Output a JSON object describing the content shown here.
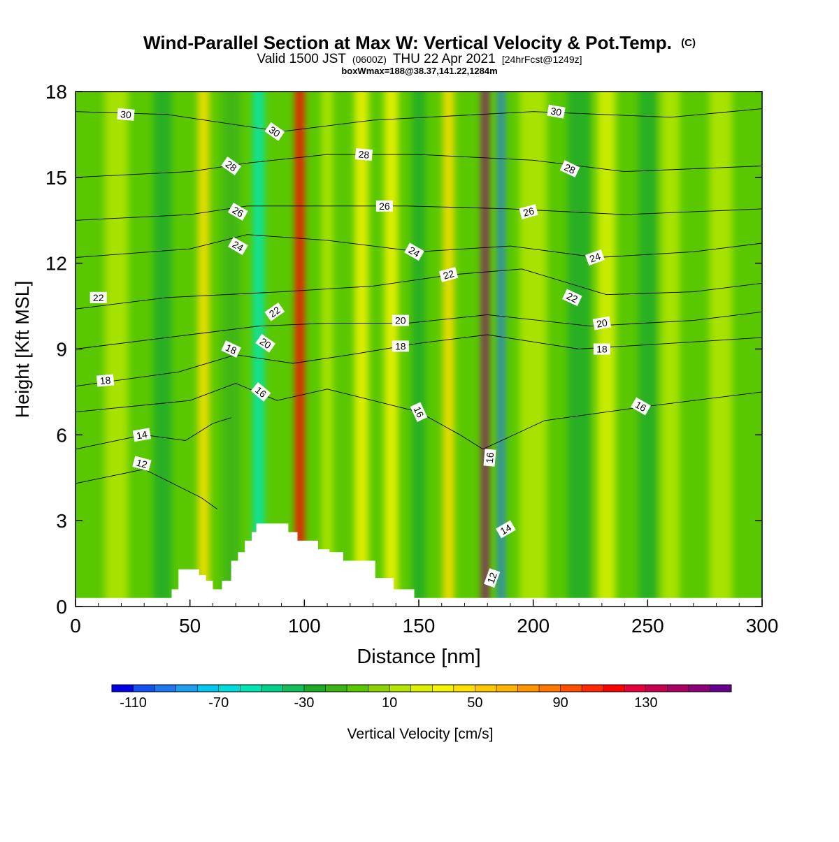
{
  "chart_data": {
    "type": "heatmap",
    "title": {
      "main": "Wind-Parallel Section at Max W: Vertical Velocity & Pot.Temp.",
      "main_suffix": "(C)",
      "valid_prefix": "Valid 1500 JST",
      "valid_utc": "(0600Z)",
      "valid_date": "THU 22 Apr 2021",
      "valid_fcst": "[24hrFcst@1249z]",
      "boxline": "boxWmax=188@38.37,141.22,1284m"
    },
    "xlabel": "Distance [nm]",
    "ylabel": "Height [Kft MSL]",
    "xlim": [
      0,
      300
    ],
    "ylim": [
      0,
      18
    ],
    "xticks": [
      "0",
      "50",
      "100",
      "150",
      "200",
      "250",
      "300"
    ],
    "yticks": [
      "0",
      "3",
      "6",
      "9",
      "12",
      "15",
      "18"
    ],
    "colorbar": {
      "label": "Vertical Velocity [cm/s]",
      "tick_labels": [
        "-110",
        "-70",
        "-30",
        "10",
        "50",
        "90",
        "130"
      ],
      "levels": [
        -120,
        -110,
        -100,
        -90,
        -80,
        -70,
        -60,
        -50,
        -40,
        -30,
        -20,
        -10,
        0,
        10,
        20,
        30,
        40,
        50,
        60,
        70,
        80,
        90,
        100,
        110,
        120,
        130,
        140,
        150,
        160
      ],
      "colors": [
        "#0000e6",
        "#1450f0",
        "#1e78f0",
        "#1ea0f0",
        "#00c8f0",
        "#00dcdc",
        "#00e6b4",
        "#00d28c",
        "#14be5a",
        "#1eaa28",
        "#3cb414",
        "#5ac800",
        "#8cd200",
        "#b4e600",
        "#dcf000",
        "#f5f500",
        "#ffe100",
        "#ffc800",
        "#ffb400",
        "#ff9600",
        "#ff7800",
        "#ff5000",
        "#ff2800",
        "#ff0000",
        "#e6003c",
        "#c80050",
        "#aa0064",
        "#8c0078",
        "#64008c"
      ]
    },
    "vertical_velocity_bands": [
      {
        "x": 0,
        "w": 30,
        "value": -5
      },
      {
        "x": 18,
        "w": 10,
        "value": 15
      },
      {
        "x": 38,
        "w": 8,
        "value": -25
      },
      {
        "x": 56,
        "w": 5,
        "value": 45
      },
      {
        "x": 68,
        "w": 8,
        "value": -15
      },
      {
        "x": 80,
        "w": 5,
        "value": -55
      },
      {
        "x": 98,
        "w": 4,
        "value": 115
      },
      {
        "x": 110,
        "w": 5,
        "value": 15
      },
      {
        "x": 125,
        "w": 6,
        "value": 35
      },
      {
        "x": 138,
        "w": 6,
        "value": 30
      },
      {
        "x": 150,
        "w": 6,
        "value": -25
      },
      {
        "x": 163,
        "w": 5,
        "value": 40
      },
      {
        "x": 179,
        "w": 3,
        "value": 150
      },
      {
        "x": 186,
        "w": 3,
        "value": -95
      },
      {
        "x": 200,
        "w": 12,
        "value": 10
      },
      {
        "x": 220,
        "w": 10,
        "value": -25
      },
      {
        "x": 232,
        "w": 8,
        "value": 20
      },
      {
        "x": 250,
        "w": 8,
        "value": -30
      },
      {
        "x": 260,
        "w": 8,
        "value": 15
      },
      {
        "x": 282,
        "w": 10,
        "value": 10
      }
    ],
    "terrain": [
      [
        0,
        0.3
      ],
      [
        42,
        0.3
      ],
      [
        42,
        0.6
      ],
      [
        45,
        0.6
      ],
      [
        45,
        1.3
      ],
      [
        54,
        1.3
      ],
      [
        54,
        1.1
      ],
      [
        57,
        1.1
      ],
      [
        57,
        0.9
      ],
      [
        60,
        0.9
      ],
      [
        60,
        0.6
      ],
      [
        64,
        0.6
      ],
      [
        64,
        0.9
      ],
      [
        68,
        0.9
      ],
      [
        68,
        1.6
      ],
      [
        71,
        1.6
      ],
      [
        71,
        1.9
      ],
      [
        74,
        1.9
      ],
      [
        74,
        2.3
      ],
      [
        77,
        2.3
      ],
      [
        77,
        2.6
      ],
      [
        79,
        2.6
      ],
      [
        79,
        2.9
      ],
      [
        93,
        2.9
      ],
      [
        93,
        2.6
      ],
      [
        97,
        2.6
      ],
      [
        97,
        2.3
      ],
      [
        106,
        2.3
      ],
      [
        106,
        2.0
      ],
      [
        111,
        2.0
      ],
      [
        111,
        1.9
      ],
      [
        117,
        1.9
      ],
      [
        117,
        1.6
      ],
      [
        131,
        1.6
      ],
      [
        131,
        1.0
      ],
      [
        139,
        1.0
      ],
      [
        139,
        0.6
      ],
      [
        148,
        0.6
      ],
      [
        148,
        0.3
      ],
      [
        300,
        0.3
      ]
    ],
    "theta_contours": [
      {
        "label": "12",
        "points": [
          [
            0,
            4.3
          ],
          [
            30,
            4.8
          ],
          [
            45,
            4.2
          ],
          [
            55,
            3.8
          ],
          [
            62,
            3.4
          ]
        ],
        "label_at": [
          29,
          5.0
        ]
      },
      {
        "label": "14",
        "points": [
          [
            0,
            5.5
          ],
          [
            30,
            6.0
          ],
          [
            48,
            5.8
          ],
          [
            60,
            6.4
          ],
          [
            68,
            6.6
          ]
        ],
        "label_at": [
          29,
          6.0
        ]
      },
      {
        "label": "16",
        "points": [
          [
            0,
            6.8
          ],
          [
            50,
            7.2
          ],
          [
            70,
            7.8
          ],
          [
            88,
            7.2
          ],
          [
            110,
            7.6
          ],
          [
            150,
            6.8
          ],
          [
            168,
            6.0
          ],
          [
            178,
            5.5
          ],
          [
            205,
            6.5
          ],
          [
            250,
            7.0
          ],
          [
            300,
            7.5
          ]
        ],
        "label_at": [
          82,
          7.5
        ]
      },
      {
        "label": "18",
        "points": [
          [
            0,
            7.7
          ],
          [
            45,
            8.2
          ],
          [
            70,
            8.8
          ],
          [
            95,
            8.5
          ],
          [
            120,
            8.8
          ],
          [
            150,
            9.2
          ],
          [
            180,
            9.5
          ],
          [
            220,
            9.0
          ],
          [
            260,
            9.2
          ],
          [
            300,
            9.4
          ]
        ],
        "label_at": [
          13,
          7.9
        ]
      },
      {
        "label": "20",
        "points": [
          [
            0,
            9.0
          ],
          [
            50,
            9.5
          ],
          [
            80,
            9.8
          ],
          [
            110,
            9.9
          ],
          [
            145,
            9.9
          ],
          [
            180,
            10.2
          ],
          [
            225,
            9.8
          ],
          [
            270,
            10.0
          ],
          [
            300,
            10.3
          ]
        ],
        "label_at": [
          83,
          9.2
        ]
      },
      {
        "label": "22",
        "points": [
          [
            0,
            10.4
          ],
          [
            40,
            10.8
          ],
          [
            90,
            11.0
          ],
          [
            130,
            11.2
          ],
          [
            165,
            11.6
          ],
          [
            195,
            11.8
          ],
          [
            232,
            10.9
          ],
          [
            270,
            11.0
          ],
          [
            300,
            11.3
          ]
        ],
        "label_at": [
          10,
          10.8
        ]
      },
      {
        "label": "24",
        "points": [
          [
            0,
            12.2
          ],
          [
            50,
            12.5
          ],
          [
            75,
            13.0
          ],
          [
            110,
            12.8
          ],
          [
            150,
            12.4
          ],
          [
            190,
            12.6
          ],
          [
            228,
            12.2
          ],
          [
            270,
            12.4
          ],
          [
            300,
            12.7
          ]
        ],
        "label_at": [
          71,
          12.6
        ]
      },
      {
        "label": "26",
        "points": [
          [
            0,
            13.5
          ],
          [
            50,
            13.7
          ],
          [
            75,
            14.0
          ],
          [
            110,
            14.0
          ],
          [
            145,
            14.0
          ],
          [
            190,
            13.9
          ],
          [
            240,
            13.7
          ],
          [
            300,
            13.9
          ]
        ],
        "label_at": [
          142,
          14.1
        ]
      },
      {
        "label": "28",
        "points": [
          [
            0,
            15.0
          ],
          [
            50,
            15.2
          ],
          [
            75,
            15.5
          ],
          [
            110,
            15.8
          ],
          [
            150,
            15.8
          ],
          [
            200,
            15.6
          ],
          [
            240,
            15.2
          ],
          [
            300,
            15.4
          ]
        ],
        "label_at": [
          126,
          15.8
        ]
      },
      {
        "label": "30",
        "points": [
          [
            0,
            17.3
          ],
          [
            40,
            17.2
          ],
          [
            90,
            16.6
          ],
          [
            130,
            17.0
          ],
          [
            200,
            17.3
          ],
          [
            260,
            17.1
          ],
          [
            300,
            17.4
          ]
        ],
        "label_at": [
          22,
          17.2
        ]
      }
    ]
  },
  "contour_labels": [
    {
      "text": "30",
      "x": 22,
      "y": 17.2,
      "rot": 5
    },
    {
      "text": "30",
      "x": 87,
      "y": 16.6,
      "rot": 35
    },
    {
      "text": "30",
      "x": 210,
      "y": 17.3,
      "rot": 10
    },
    {
      "text": "28",
      "x": 68,
      "y": 15.4,
      "rot": 35
    },
    {
      "text": "28",
      "x": 126,
      "y": 15.8,
      "rot": 5
    },
    {
      "text": "28",
      "x": 216,
      "y": 15.3,
      "rot": 25
    },
    {
      "text": "26",
      "x": 71,
      "y": 13.8,
      "rot": 30
    },
    {
      "text": "26",
      "x": 135,
      "y": 14.0,
      "rot": 0
    },
    {
      "text": "26",
      "x": 198,
      "y": 13.8,
      "rot": -15
    },
    {
      "text": "24",
      "x": 71,
      "y": 12.6,
      "rot": 30
    },
    {
      "text": "24",
      "x": 148,
      "y": 12.4,
      "rot": 30
    },
    {
      "text": "24",
      "x": 227,
      "y": 12.2,
      "rot": -20
    },
    {
      "text": "22",
      "x": 10,
      "y": 10.8,
      "rot": 0
    },
    {
      "text": "22",
      "x": 87,
      "y": 10.3,
      "rot": -35
    },
    {
      "text": "22",
      "x": 163,
      "y": 11.6,
      "rot": -15
    },
    {
      "text": "22",
      "x": 217,
      "y": 10.8,
      "rot": 25
    },
    {
      "text": "20",
      "x": 83,
      "y": 9.2,
      "rot": 35
    },
    {
      "text": "20",
      "x": 142,
      "y": 10.0,
      "rot": 0
    },
    {
      "text": "20",
      "x": 230,
      "y": 9.9,
      "rot": -10
    },
    {
      "text": "18",
      "x": 13,
      "y": 7.9,
      "rot": -5
    },
    {
      "text": "18",
      "x": 68,
      "y": 9.0,
      "rot": 25
    },
    {
      "text": "18",
      "x": 142,
      "y": 9.1,
      "rot": 0
    },
    {
      "text": "18",
      "x": 230,
      "y": 9.0,
      "rot": 0
    },
    {
      "text": "16",
      "x": 81,
      "y": 7.5,
      "rot": 40
    },
    {
      "text": "16",
      "x": 150,
      "y": 6.8,
      "rot": 65
    },
    {
      "text": "16",
      "x": 181,
      "y": 5.2,
      "rot": -85
    },
    {
      "text": "16",
      "x": 247,
      "y": 7.0,
      "rot": 30
    },
    {
      "text": "14",
      "x": 29,
      "y": 6.0,
      "rot": -10
    },
    {
      "text": "14",
      "x": 188,
      "y": 2.7,
      "rot": -30
    },
    {
      "text": "12",
      "x": 29,
      "y": 5.0,
      "rot": 15
    },
    {
      "text": "12",
      "x": 182,
      "y": 1.0,
      "rot": -70
    }
  ]
}
